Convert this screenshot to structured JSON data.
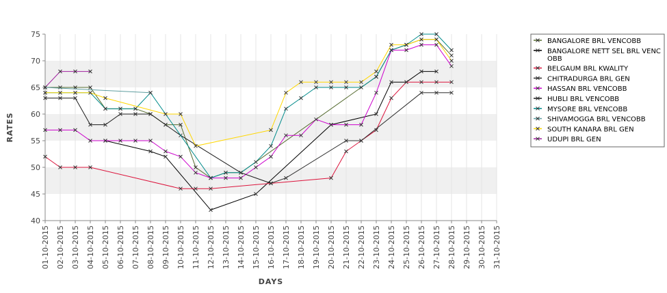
{
  "chart_data": {
    "type": "line",
    "xlabel": "DAYS",
    "ylabel": "RATES",
    "ylim": [
      40,
      75
    ],
    "yticks": [
      40,
      45,
      50,
      55,
      60,
      65,
      70,
      75
    ],
    "grid": "alternating horizontal bands",
    "legend_position": "right",
    "categories": [
      "01-10-2015",
      "02-10-2015",
      "03-10-2015",
      "04-10-2015",
      "05-10-2015",
      "06-10-2015",
      "07-10-2015",
      "08-10-2015",
      "09-10-2015",
      "10-10-2015",
      "11-10-2015",
      "12-10-2015",
      "13-10-2015",
      "14-10-2015",
      "15-10-2015",
      "16-10-2015",
      "17-10-2015",
      "18-10-2015",
      "19-10-2015",
      "20-10-2015",
      "21-10-2015",
      "22-10-2015",
      "23-10-2015",
      "24-10-2015",
      "25-10-2015",
      "26-10-2015",
      "27-10-2015",
      "28-10-2015",
      "29-10-2015",
      "30-10-2015",
      "31-10-2015"
    ],
    "series": [
      {
        "name": "BANGALORE BRL VENCOBB",
        "color": "#556b2f",
        "values": [
          65,
          65,
          65,
          65,
          61,
          61,
          61,
          60,
          58,
          58,
          50,
          48,
          49,
          49,
          null,
          null,
          null,
          null,
          null,
          null,
          null,
          null,
          67,
          72,
          73,
          74,
          74,
          71,
          null,
          null,
          null
        ]
      },
      {
        "name": "BANGALORE NETT SEL BRL VENCOBB",
        "color": "#000000",
        "values": [
          null,
          null,
          null,
          null,
          55,
          null,
          null,
          53,
          52,
          null,
          null,
          42,
          null,
          null,
          45,
          null,
          null,
          null,
          null,
          58,
          null,
          null,
          60,
          66,
          66,
          68,
          68,
          null,
          null,
          null,
          null
        ]
      },
      {
        "name": "BELGAUM BRL KWALITY",
        "color": "#dc143c",
        "values": [
          52,
          50,
          50,
          50,
          null,
          null,
          null,
          null,
          null,
          46,
          46,
          46,
          null,
          null,
          null,
          null,
          null,
          null,
          null,
          48,
          53,
          55,
          57,
          63,
          66,
          66,
          66,
          66,
          null,
          null,
          null
        ]
      },
      {
        "name": "CHITRADURGA BRL GEN",
        "color": "#2f2f2f",
        "values": [
          null,
          null,
          null,
          null,
          null,
          null,
          null,
          null,
          null,
          null,
          null,
          null,
          null,
          null,
          null,
          47,
          48,
          null,
          null,
          null,
          55,
          55,
          null,
          null,
          null,
          64,
          64,
          64,
          null,
          null,
          null
        ]
      },
      {
        "name": "HASSAN BRL VENCOBB",
        "color": "#cc00cc",
        "values": [
          57,
          57,
          57,
          55,
          55,
          55,
          55,
          55,
          53,
          52,
          49,
          48,
          48,
          48,
          50,
          52,
          56,
          56,
          59,
          58,
          58,
          58,
          64,
          72,
          72,
          73,
          73,
          69,
          null,
          null,
          null
        ]
      },
      {
        "name": "HUBLI BRL VENCOBB",
        "color": "#1a1a1a",
        "values": [
          63,
          63,
          63,
          58,
          58,
          60,
          60,
          60,
          58,
          56,
          null,
          null,
          null,
          49,
          null,
          47,
          null,
          null,
          null,
          null,
          null,
          null,
          null,
          null,
          null,
          null,
          null,
          null,
          null,
          null,
          null
        ]
      },
      {
        "name": "MYSORE BRL VENCOBB",
        "color": "#008b8b",
        "values": [
          64,
          64,
          64,
          64,
          61,
          61,
          61,
          64,
          null,
          null,
          null,
          48,
          49,
          49,
          51,
          54,
          61,
          63,
          65,
          65,
          65,
          65,
          67,
          72,
          73,
          75,
          75,
          72,
          null,
          null,
          null
        ]
      },
      {
        "name": "SHIVAMOGGA BRL VENCOBB",
        "color": "#5f9ea0",
        "values": [
          65,
          null,
          null,
          null,
          null,
          null,
          null,
          64,
          null,
          null,
          null,
          null,
          null,
          null,
          null,
          null,
          null,
          null,
          null,
          null,
          null,
          null,
          null,
          null,
          null,
          null,
          null,
          null,
          null,
          null,
          null
        ]
      },
      {
        "name": "SOUTH KANARA BRL GEN",
        "color": "#ffd700",
        "values": [
          64,
          64,
          64,
          64,
          63,
          null,
          null,
          null,
          60,
          60,
          54,
          null,
          null,
          null,
          null,
          57,
          64,
          66,
          66,
          66,
          66,
          66,
          68,
          73,
          73,
          74,
          74,
          70,
          null,
          null,
          null
        ]
      },
      {
        "name": "UDUPI BRL GEN",
        "color": "#a0209f",
        "values": [
          65,
          68,
          68,
          68,
          null,
          null,
          null,
          null,
          null,
          null,
          null,
          null,
          null,
          null,
          null,
          null,
          null,
          null,
          null,
          null,
          null,
          null,
          null,
          null,
          null,
          null,
          null,
          null,
          null,
          null,
          null
        ]
      }
    ]
  }
}
